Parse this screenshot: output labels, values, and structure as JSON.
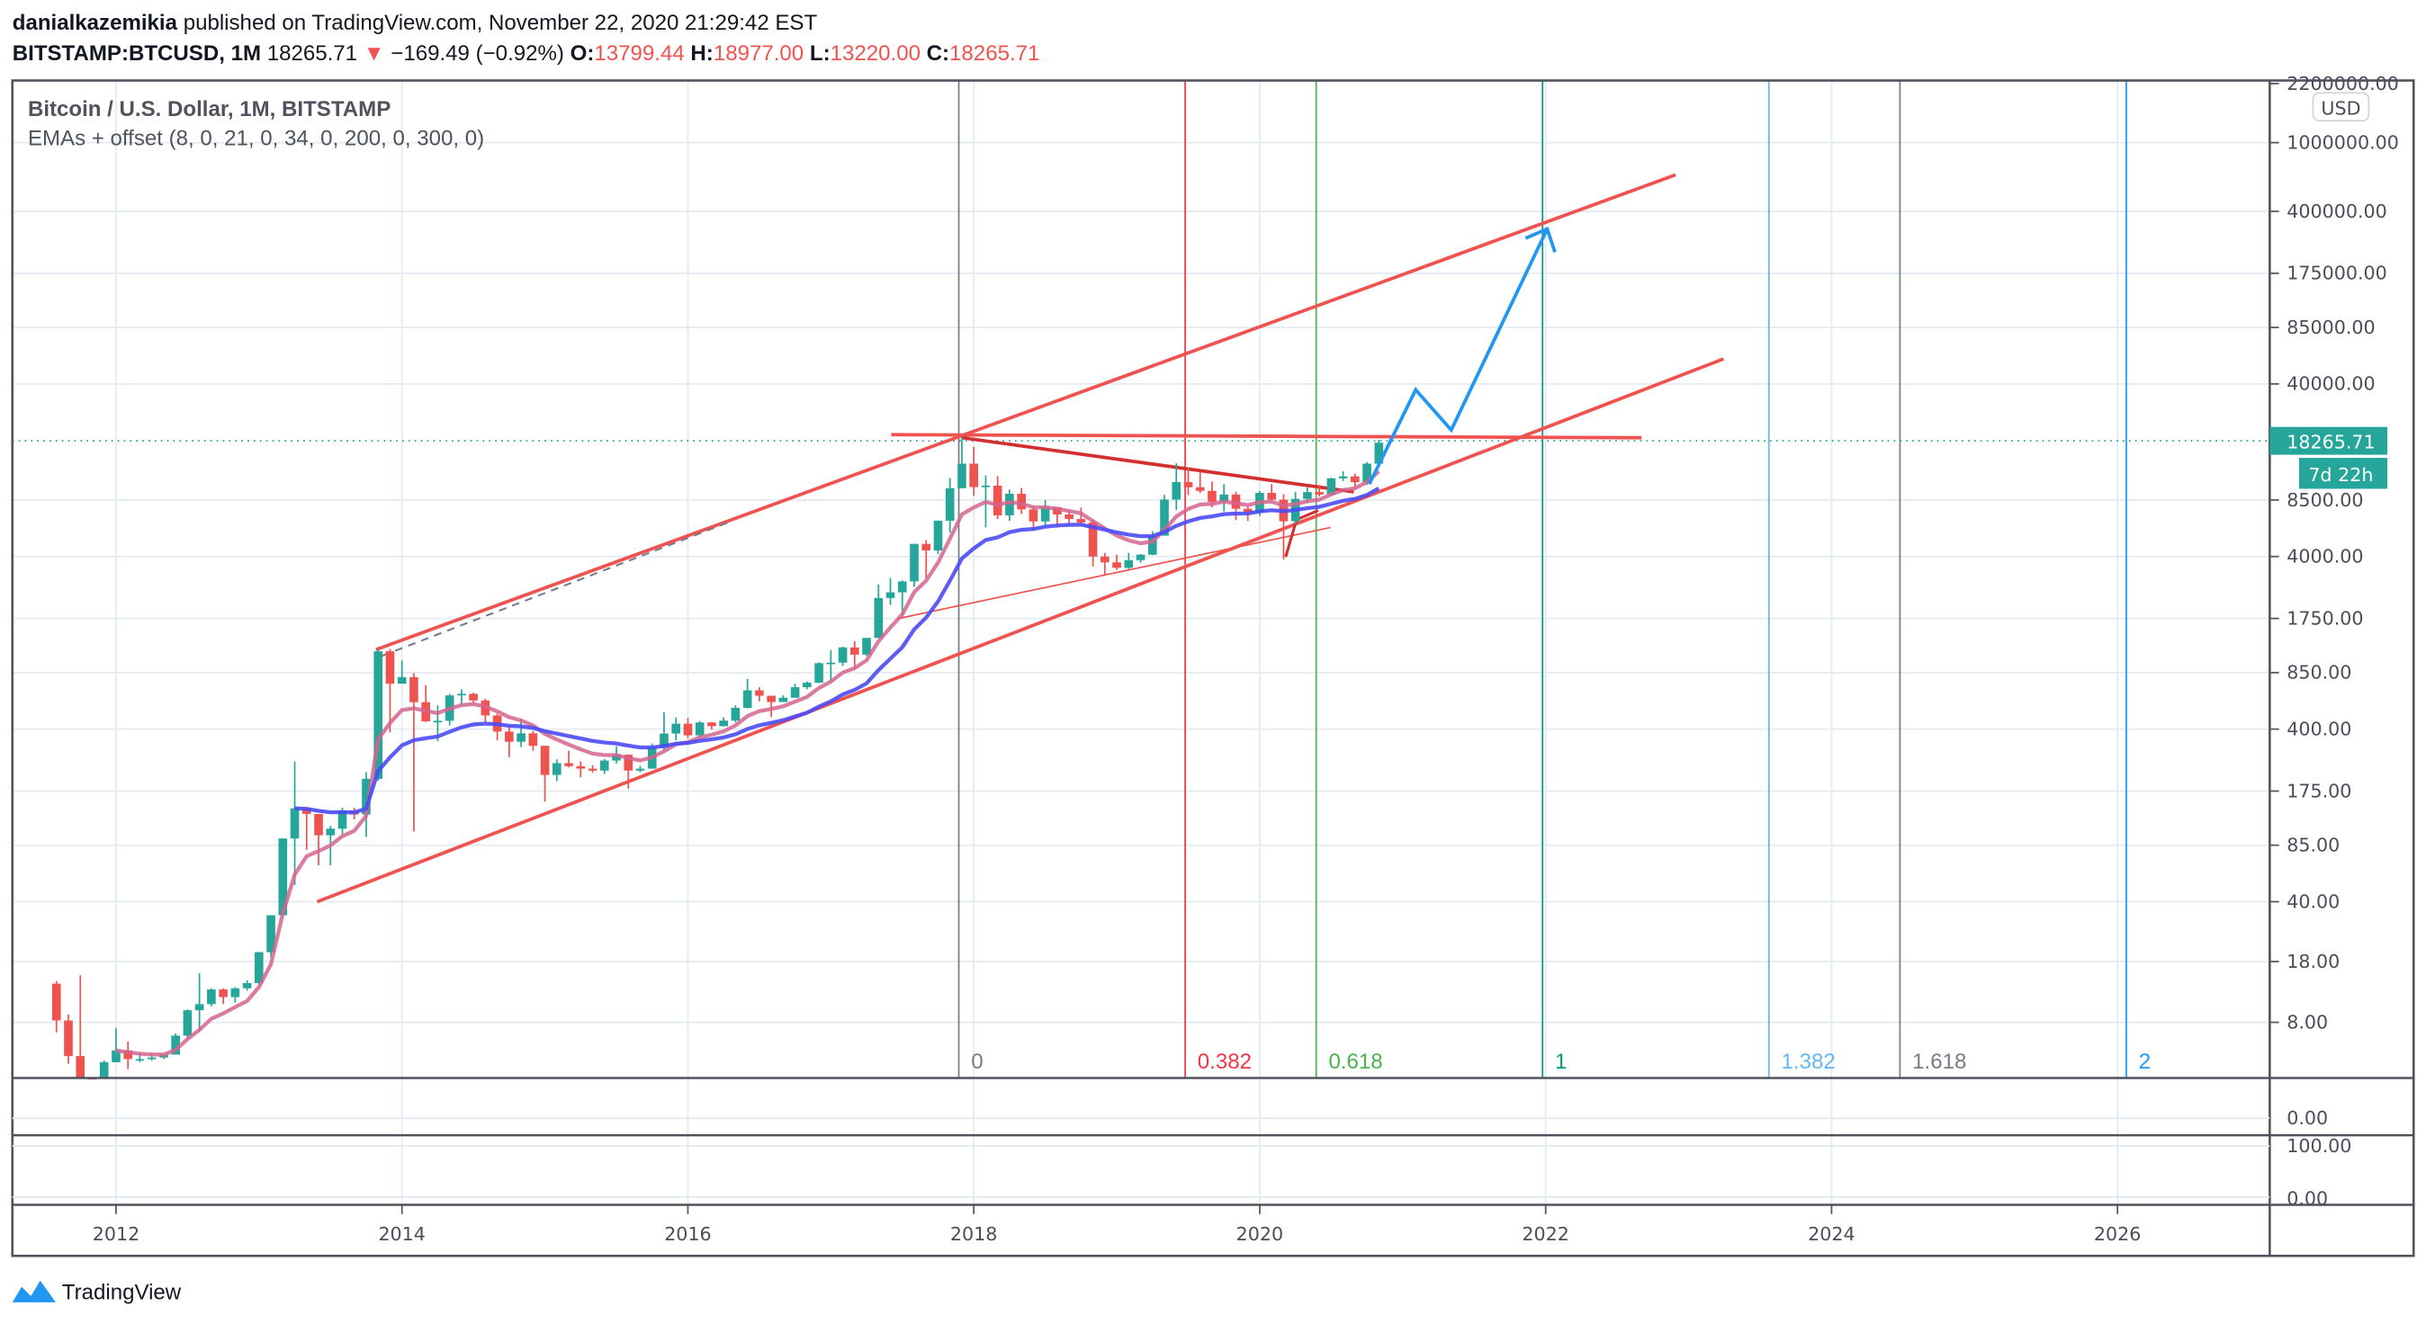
{
  "header": {
    "author": "danialkazemikia",
    "published": "published on TradingView.com, November 22, 2020 21:29:42 EST",
    "symbol": "BITSTAMP:BTCUSD, 1M",
    "last": "18265.71",
    "change": "−169.49 (−0.92%)",
    "o_label": "O:",
    "o": "13799.44",
    "h_label": "H:",
    "h": "18977.00",
    "l_label": "L:",
    "l": "13220.00",
    "c_label": "C:",
    "c": "18265.71"
  },
  "legend": {
    "title": "Bitcoin / U.S. Dollar, 1M, BITSTAMP",
    "indicator": "EMAs + offset (8, 0, 21, 0, 34, 0, 200, 0, 300, 0)"
  },
  "price_axis": {
    "currency": "USD",
    "last_price_label": "18265.71",
    "countdown": "7d 22h"
  },
  "pane2_axis": [
    "0.00"
  ],
  "pane3_axis": [
    "100.00",
    "0.00"
  ],
  "footer": {
    "brand": "TradingView"
  },
  "colors": {
    "up": "#26a69a",
    "down": "#ef5350",
    "ema_fast": "#d5648f",
    "ema_slow": "#4b4bf5",
    "drawing": "#ef5350",
    "projection": "#2196f3"
  },
  "chart_data": {
    "type": "candlestick",
    "title": "Bitcoin / U.S. Dollar, 1M, BITSTAMP",
    "y_scale": "log",
    "ylim": [
      2,
      2200000
    ],
    "y_ticks": [
      2200000,
      1000000,
      400000,
      175000,
      85000,
      40000,
      8500,
      4000,
      1750,
      850,
      400,
      175,
      85,
      40,
      18,
      8
    ],
    "y_tick_labels": [
      "2200000.00",
      "1000000.00",
      "400000.00",
      "175000.00",
      "85000.00",
      "40000.00",
      "8500.00",
      "4000.00",
      "1750.00",
      "850.00",
      "400.00",
      "175.00",
      "85.00",
      "40.00",
      "18.00",
      "8.00"
    ],
    "x_ticks": [
      "2012",
      "2014",
      "2016",
      "2018",
      "2020",
      "2022",
      "2024",
      "2026"
    ],
    "xlim": [
      "2011-05",
      "2027-03"
    ],
    "grid": true,
    "ema_periods": [
      8,
      21
    ],
    "fib_time_zones": [
      {
        "label": "0",
        "date": "2017-12",
        "color": "#787b86"
      },
      {
        "label": "0.382",
        "date": "2019-07",
        "color": "#f23645"
      },
      {
        "label": "0.618",
        "date": "2020-06",
        "color": "#4caf50"
      },
      {
        "label": "1",
        "date": "2022-01",
        "color": "#089981"
      },
      {
        "label": "1.382",
        "date": "2023-08",
        "color": "#64b5f6"
      },
      {
        "label": "1.618",
        "date": "2024-07",
        "color": "#787b86"
      },
      {
        "label": "2",
        "date": "2026-02",
        "color": "#2196f3"
      }
    ],
    "candles_columns": [
      "month",
      "open",
      "high",
      "low",
      "close"
    ],
    "candles": [
      [
        "2011-08",
        13.4,
        13.9,
        7.0,
        8.2
      ],
      [
        "2011-09",
        8.2,
        8.9,
        4.6,
        5.1
      ],
      [
        "2011-10",
        5.1,
        15,
        2.2,
        3.2
      ],
      [
        "2011-11",
        3.2,
        3.5,
        2.0,
        3.0
      ],
      [
        "2011-12",
        3.0,
        4.8,
        2.8,
        4.7
      ],
      [
        "2012-01",
        4.7,
        7.4,
        4.7,
        5.5
      ],
      [
        "2012-02",
        5.5,
        6.2,
        4.3,
        4.9
      ],
      [
        "2012-03",
        4.9,
        5.3,
        4.7,
        4.9
      ],
      [
        "2012-04",
        4.9,
        5.3,
        4.8,
        5.0
      ],
      [
        "2012-05",
        5.0,
        5.2,
        4.9,
        5.2
      ],
      [
        "2012-06",
        5.2,
        6.9,
        5.2,
        6.7
      ],
      [
        "2012-07",
        6.7,
        9.5,
        6.4,
        9.4
      ],
      [
        "2012-08",
        9.4,
        15.4,
        7.1,
        10.2
      ],
      [
        "2012-09",
        10.2,
        12.6,
        9.9,
        12.4
      ],
      [
        "2012-10",
        12.4,
        12.6,
        10.2,
        11.2
      ],
      [
        "2012-11",
        11.2,
        12.8,
        10.4,
        12.6
      ],
      [
        "2012-12",
        12.6,
        14.0,
        12.2,
        13.5
      ],
      [
        "2013-01",
        13.5,
        20.4,
        13.1,
        20.4
      ],
      [
        "2013-02",
        20.4,
        33.4,
        19.1,
        33.4
      ],
      [
        "2013-03",
        33.4,
        92,
        33,
        93
      ],
      [
        "2013-04",
        93,
        259,
        50,
        139
      ],
      [
        "2013-05",
        139,
        140,
        80,
        129
      ],
      [
        "2013-06",
        129,
        129,
        65,
        97
      ],
      [
        "2013-07",
        97,
        110,
        65,
        106
      ],
      [
        "2013-08",
        106,
        140,
        98,
        135
      ],
      [
        "2013-09",
        135,
        140,
        120,
        128
      ],
      [
        "2013-10",
        128,
        225,
        95,
        206
      ],
      [
        "2013-11",
        206,
        1163,
        201,
        1130
      ],
      [
        "2013-12",
        1130,
        1165,
        383,
        733
      ],
      [
        "2014-01",
        733,
        1000,
        735,
        800
      ],
      [
        "2014-02",
        800,
        845,
        102,
        573
      ],
      [
        "2014-03",
        573,
        720,
        440,
        444
      ],
      [
        "2014-04",
        444,
        549,
        340,
        447
      ],
      [
        "2014-05",
        447,
        640,
        420,
        627
      ],
      [
        "2014-06",
        627,
        680,
        550,
        640
      ],
      [
        "2014-07",
        640,
        650,
        565,
        586
      ],
      [
        "2014-08",
        586,
        600,
        440,
        480
      ],
      [
        "2014-09",
        480,
        490,
        345,
        387
      ],
      [
        "2014-10",
        387,
        415,
        275,
        338
      ],
      [
        "2014-11",
        338,
        460,
        315,
        378
      ],
      [
        "2014-12",
        378,
        390,
        300,
        320
      ],
      [
        "2015-01",
        320,
        320,
        152,
        217
      ],
      [
        "2015-02",
        217,
        267,
        200,
        254
      ],
      [
        "2015-03",
        254,
        300,
        240,
        244
      ],
      [
        "2015-04",
        244,
        260,
        210,
        236
      ],
      [
        "2015-05",
        236,
        247,
        224,
        230
      ],
      [
        "2015-06",
        230,
        268,
        220,
        263
      ],
      [
        "2015-07",
        263,
        318,
        253,
        284
      ],
      [
        "2015-08",
        284,
        285,
        180,
        230
      ],
      [
        "2015-09",
        230,
        245,
        225,
        236
      ],
      [
        "2015-10",
        236,
        330,
        236,
        314
      ],
      [
        "2015-11",
        314,
        500,
        300,
        377
      ],
      [
        "2015-12",
        377,
        467,
        344,
        430
      ],
      [
        "2016-01",
        430,
        465,
        355,
        368
      ],
      [
        "2016-02",
        368,
        445,
        360,
        437
      ],
      [
        "2016-03",
        437,
        440,
        398,
        416
      ],
      [
        "2016-04",
        416,
        467,
        414,
        448
      ],
      [
        "2016-05",
        448,
        550,
        437,
        531
      ],
      [
        "2016-06",
        531,
        780,
        527,
        671
      ],
      [
        "2016-07",
        671,
        700,
        580,
        624
      ],
      [
        "2016-08",
        624,
        625,
        470,
        574
      ],
      [
        "2016-09",
        574,
        628,
        574,
        608
      ],
      [
        "2016-10",
        608,
        733,
        608,
        700
      ],
      [
        "2016-11",
        700,
        755,
        680,
        743
      ],
      [
        "2016-12",
        743,
        975,
        740,
        964
      ],
      [
        "2017-01",
        964,
        1150,
        750,
        971
      ],
      [
        "2017-02",
        971,
        1200,
        930,
        1190
      ],
      [
        "2017-03",
        1190,
        1290,
        890,
        1080
      ],
      [
        "2017-04",
        1080,
        1350,
        1060,
        1350
      ],
      [
        "2017-05",
        1350,
        2760,
        1350,
        2300
      ],
      [
        "2017-06",
        2300,
        3000,
        2100,
        2480
      ],
      [
        "2017-07",
        2480,
        2910,
        1830,
        2870
      ],
      [
        "2017-08",
        2870,
        4740,
        2670,
        4735
      ],
      [
        "2017-09",
        4735,
        4980,
        2980,
        4340
      ],
      [
        "2017-10",
        4340,
        6470,
        4140,
        6450
      ],
      [
        "2017-11",
        6450,
        11400,
        5500,
        9950
      ],
      [
        "2017-12",
        9950,
        19666,
        9950,
        13800
      ],
      [
        "2018-01",
        13800,
        17250,
        9000,
        10100
      ],
      [
        "2018-02",
        10100,
        11790,
        5900,
        10300
      ],
      [
        "2018-03",
        10300,
        11700,
        6600,
        6930
      ],
      [
        "2018-04",
        6930,
        9760,
        6430,
        9240
      ],
      [
        "2018-05",
        9240,
        9980,
        7060,
        7500
      ],
      [
        "2018-06",
        7500,
        7780,
        5750,
        6390
      ],
      [
        "2018-07",
        6390,
        8500,
        6060,
        7730
      ],
      [
        "2018-08",
        7730,
        7750,
        5880,
        7010
      ],
      [
        "2018-09",
        7010,
        7400,
        6100,
        6600
      ],
      [
        "2018-10",
        6600,
        7680,
        6200,
        6300
      ],
      [
        "2018-11",
        6300,
        6560,
        3500,
        4000
      ],
      [
        "2018-12",
        4000,
        4200,
        3120,
        3700
      ],
      [
        "2019-01",
        3700,
        4100,
        3350,
        3440
      ],
      [
        "2019-02",
        3440,
        4200,
        3380,
        3810
      ],
      [
        "2019-03",
        3810,
        4140,
        3680,
        4100
      ],
      [
        "2019-04",
        4100,
        5600,
        4080,
        5280
      ],
      [
        "2019-05",
        5280,
        9100,
        5280,
        8550
      ],
      [
        "2019-06",
        8550,
        13880,
        7450,
        10800
      ],
      [
        "2019-07",
        10800,
        13200,
        9100,
        10080
      ],
      [
        "2019-08",
        10080,
        12330,
        9350,
        9600
      ],
      [
        "2019-09",
        9600,
        10900,
        7700,
        8300
      ],
      [
        "2019-10",
        8300,
        10500,
        7300,
        9150
      ],
      [
        "2019-11",
        9150,
        9500,
        6500,
        7560
      ],
      [
        "2019-12",
        7560,
        7750,
        6430,
        7200
      ],
      [
        "2020-01",
        7200,
        9580,
        6880,
        9350
      ],
      [
        "2020-02",
        9350,
        10500,
        8450,
        8540
      ],
      [
        "2020-03",
        8540,
        9200,
        3850,
        6400
      ],
      [
        "2020-04",
        6400,
        9470,
        6160,
        8630
      ],
      [
        "2020-05",
        8630,
        10060,
        8120,
        9450
      ],
      [
        "2020-06",
        9450,
        10400,
        8900,
        9140
      ],
      [
        "2020-07",
        9140,
        11450,
        8960,
        11350
      ],
      [
        "2020-08",
        11350,
        12480,
        10950,
        11650
      ],
      [
        "2020-09",
        11650,
        12080,
        9840,
        10780
      ],
      [
        "2020-10",
        10780,
        14100,
        10400,
        13800
      ],
      [
        "2020-11",
        13799.44,
        18977,
        13220,
        18265.71
      ]
    ]
  }
}
